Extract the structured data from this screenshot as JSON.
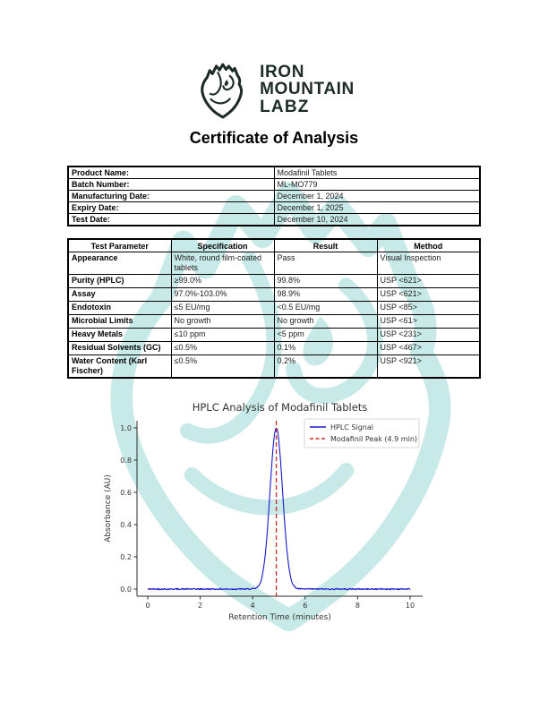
{
  "logo": {
    "line1": "IRON",
    "line2": "MOUNTAIN",
    "line3": "LABZ"
  },
  "title": "Certificate of Analysis",
  "product_info": {
    "rows": [
      {
        "label": "Product Name:",
        "value": "Modafinil Tablets"
      },
      {
        "label": "Batch Number:",
        "value": "ML-MO779"
      },
      {
        "label": "Manufacturing Date:",
        "value": "December 1, 2024"
      },
      {
        "label": "Expiry Date:",
        "value": "December 1, 2025"
      },
      {
        "label": "Test Date:",
        "value": "December 10, 2024"
      }
    ]
  },
  "results_table": {
    "headers": [
      "Test Parameter",
      "Specification",
      "Result",
      "Method"
    ],
    "rows": [
      [
        "Appearance",
        "White, round film-coated tablets",
        "Pass",
        "Visual Inspection"
      ],
      [
        "Purity (HPLC)",
        "≥99.0%",
        "99.8%",
        "USP <621>"
      ],
      [
        "Assay",
        "97.0%-103.0%",
        "98.9%",
        "USP <621>"
      ],
      [
        "Endotoxin",
        "≤5 EU/mg",
        "<0.5 EU/mg",
        "USP <85>"
      ],
      [
        "Microbial Limits",
        "No growth",
        "No growth",
        "USP <61>"
      ],
      [
        "Heavy Metals",
        "≤10 ppm",
        "<5 ppm",
        "USP <231>"
      ],
      [
        "Residual Solvents (GC)",
        "≤0.5%",
        "0.1%",
        "USP <467>"
      ],
      [
        "Water Content (Karl Fischer)",
        "≤0.5%",
        "0.2%",
        "USP <921>"
      ]
    ]
  },
  "chart_data": {
    "type": "line",
    "title": "HPLC Analysis of Modafinil Tablets",
    "xlabel": "Retention Time (minutes)",
    "ylabel": "Absorbance (AU)",
    "xlim": [
      0,
      10
    ],
    "ylim": [
      0,
      1.0
    ],
    "x_ticks": [
      0,
      2,
      4,
      6,
      8,
      10
    ],
    "y_ticks": [
      0.0,
      0.2,
      0.4,
      0.6,
      0.8,
      1.0
    ],
    "grid": false,
    "legend_position": "upper right",
    "series": [
      {
        "name": "HPLC Signal",
        "model": "gaussian",
        "peak_center": 4.9,
        "peak_height": 1.0,
        "peak_sigma": 0.24,
        "baseline": 0.0,
        "noise_amplitude": 0.004
      }
    ],
    "annotations": [
      {
        "type": "vline",
        "x": 4.9,
        "label": "Modafinil Peak (4.9 min)"
      }
    ],
    "legend": [
      {
        "label": "HPLC Signal",
        "color": "#1a1acd",
        "style": "solid"
      },
      {
        "label": "Modafinil Peak (4.9 min)",
        "color": "#cc2a2a",
        "style": "dashed"
      }
    ]
  },
  "colors": {
    "logo_dark": "#1d2b27",
    "watermark_teal": "#aee0dd",
    "signal_blue": "#1a1acd",
    "peak_red": "#cc2a2a",
    "table_border": "#000000"
  }
}
